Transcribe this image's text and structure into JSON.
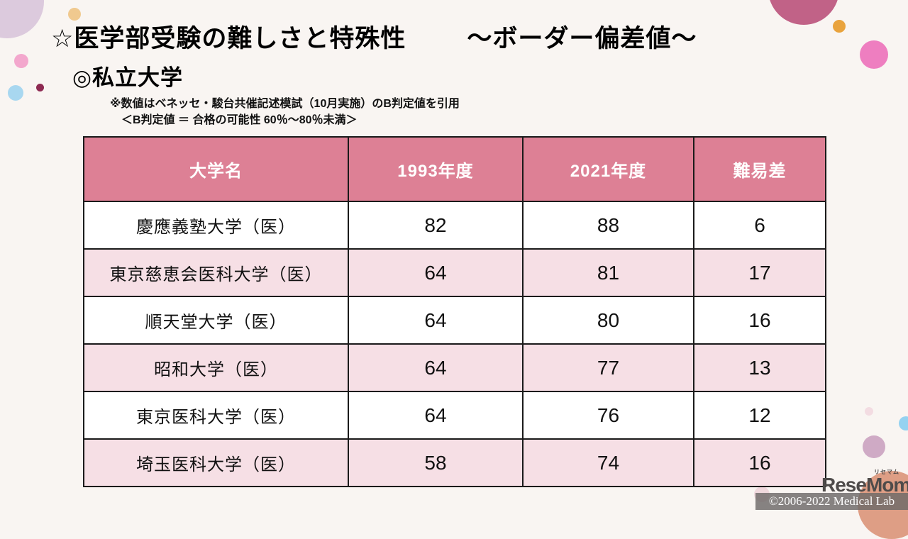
{
  "slide": {
    "title_main": "☆医学部受験の難しさと特殊性",
    "title_sub": "～ボーダー偏差値～",
    "subtitle": "◎私立大学",
    "note_line1": "※数値はベネッセ・駿台共催記述模試（10月実施）のB判定値を引用",
    "note_line2": "＜B判定値 ＝ 合格の可能性  60％～80％未満＞"
  },
  "chart_data": {
    "type": "table",
    "title": "私立大学 医学部 ボーダー偏差値（B判定値）",
    "headers": [
      "大学名",
      "1993年度",
      "2021年度",
      "難易差"
    ],
    "rows": [
      {
        "name": "慶應義塾大学（医）",
        "y1993": "82",
        "y2021": "88",
        "diff": "6"
      },
      {
        "name": "東京慈恵会医科大学（医）",
        "y1993": "64",
        "y2021": "81",
        "diff": "17"
      },
      {
        "name": "順天堂大学（医）",
        "y1993": "64",
        "y2021": "80",
        "diff": "16"
      },
      {
        "name": "昭和大学（医）",
        "y1993": "64",
        "y2021": "77",
        "diff": "13"
      },
      {
        "name": "東京医科大学（医）",
        "y1993": "64",
        "y2021": "76",
        "diff": "12"
      },
      {
        "name": "埼玉医科大学（医）",
        "y1993": "58",
        "y2021": "74",
        "diff": "16"
      }
    ]
  },
  "footer": {
    "logo_text": "ReseMom",
    "logo_kana": "リセマム",
    "copyright": "©2006-2022 Medical Lab"
  },
  "colors": {
    "background": "#f9f5f2",
    "header_row": "#dd8095",
    "striped_row": "#f6dfe5",
    "plain_row": "#ffffff",
    "table_border": "#1a1a1a",
    "header_text": "#ffffff",
    "copyright_bar": "#6c6968",
    "logo_gray": "#4f4b4a"
  }
}
